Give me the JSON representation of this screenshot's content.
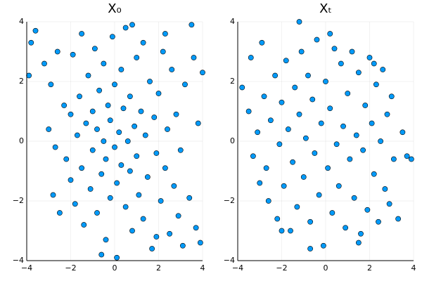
{
  "chart_data": [
    {
      "type": "scatter",
      "title": "X₀",
      "color": "#009af9",
      "grid": true,
      "xlim": [
        -4,
        4
      ],
      "ylim": [
        -4,
        4
      ],
      "xticks": [
        {
          "value": -4,
          "label": "−4"
        },
        {
          "value": -2,
          "label": "−2"
        },
        0,
        2,
        4
      ],
      "yticks": [
        {
          "value": -4,
          "label": "−4"
        },
        {
          "value": -2,
          "label": "−2"
        },
        0,
        2,
        4
      ],
      "x": [
        -3.9,
        -3.8,
        -3.6,
        -3.2,
        -2.9,
        -3.0,
        -2.7,
        -2.8,
        -2.5,
        -2.3,
        -2.2,
        -2.0,
        -2.0,
        -1.9,
        -1.8,
        -1.7,
        -1.6,
        -1.5,
        -1.4,
        -1.3,
        -1.2,
        -1.1,
        -1.0,
        -1.0,
        -0.9,
        -0.8,
        -0.8,
        -0.7,
        -0.6,
        -0.5,
        -0.5,
        -0.4,
        -0.4,
        -0.3,
        -0.2,
        -0.2,
        -0.1,
        0.0,
        0.0,
        0.1,
        0.1,
        0.2,
        0.3,
        0.3,
        0.4,
        0.5,
        0.5,
        0.6,
        0.7,
        0.7,
        0.8,
        0.9,
        1.0,
        1.0,
        1.1,
        1.2,
        1.3,
        1.3,
        1.4,
        1.5,
        1.6,
        1.7,
        1.8,
        1.9,
        2.0,
        2.1,
        2.2,
        2.3,
        2.4,
        2.5,
        2.6,
        2.7,
        2.8,
        2.9,
        3.0,
        3.1,
        3.2,
        3.4,
        3.6,
        3.7,
        3.8,
        3.9,
        4.0,
        3.5,
        2.3,
        -0.6,
        1.9,
        -1.5,
        0.8,
        -2.6
      ],
      "y": [
        2.2,
        3.3,
        3.7,
        2.6,
        1.9,
        0.4,
        -0.2,
        -1.8,
        -2.4,
        1.2,
        -0.6,
        0.9,
        -1.3,
        2.9,
        -2.1,
        0.2,
        1.5,
        -0.9,
        -2.8,
        0.6,
        2.2,
        -1.6,
        1.0,
        -0.3,
        3.1,
        -2.4,
        0.4,
        1.7,
        -1.1,
        0.0,
        2.6,
        -3.3,
        -0.6,
        1.2,
        -1.9,
        0.7,
        3.5,
        -0.2,
        1.9,
        -1.4,
        -3.9,
        0.3,
        2.4,
        -0.8,
        1.1,
        -2.2,
        3.8,
        0.0,
        -1.0,
        1.5,
        -3.0,
        0.5,
        2.8,
        -0.5,
        -1.8,
        1.0,
        3.3,
        -2.6,
        0.2,
        -1.2,
        2.0,
        -3.6,
        0.8,
        -0.4,
        1.6,
        -2.0,
        3.0,
        -0.9,
        0.4,
        -3.1,
        2.4,
        -1.5,
        0.9,
        -2.5,
        -0.3,
        -3.5,
        1.9,
        -1.9,
        2.8,
        -2.9,
        0.6,
        -3.4,
        2.3,
        3.9,
        3.6,
        -3.8,
        -3.2,
        3.6,
        3.9,
        3.0
      ]
    },
    {
      "type": "scatter",
      "title": "Xₜ",
      "color": "#009af9",
      "grid": true,
      "xlim": [
        -4,
        4
      ],
      "ylim": [
        -4,
        4
      ],
      "xticks": [
        {
          "value": -4,
          "label": "−4"
        },
        {
          "value": -2,
          "label": "−2"
        },
        0,
        2,
        4
      ],
      "yticks": [
        {
          "value": -4,
          "label": "−4"
        },
        {
          "value": -2,
          "label": "−2"
        },
        0,
        2,
        4
      ],
      "x": [
        -3.8,
        -3.4,
        -3.5,
        -3.3,
        -3.1,
        -3.0,
        -2.9,
        -2.8,
        -2.7,
        -2.6,
        -2.5,
        -2.3,
        -2.2,
        -2.1,
        -2.0,
        -1.9,
        -1.8,
        -1.7,
        -1.6,
        -1.5,
        -1.4,
        -1.3,
        -1.2,
        -1.1,
        -1.0,
        -0.9,
        -0.8,
        -0.7,
        -0.6,
        -0.5,
        -0.4,
        -0.3,
        -0.2,
        -0.1,
        0.0,
        0.1,
        0.2,
        0.3,
        0.4,
        0.5,
        0.6,
        0.7,
        0.8,
        0.9,
        1.0,
        1.1,
        1.2,
        1.3,
        1.4,
        1.5,
        1.6,
        1.7,
        1.8,
        1.9,
        2.0,
        2.1,
        2.2,
        2.3,
        2.4,
        2.5,
        2.6,
        2.7,
        2.8,
        2.9,
        3.0,
        3.1,
        3.3,
        3.5,
        3.7,
        3.9,
        -0.7,
        0.2,
        -1.2,
        1.5,
        -2.0,
        2.2
      ],
      "y": [
        1.8,
        2.8,
        1.0,
        -0.5,
        0.3,
        -1.4,
        3.3,
        1.5,
        -0.9,
        -2.0,
        0.7,
        2.2,
        -2.6,
        -0.1,
        1.3,
        -1.5,
        2.7,
        0.4,
        -3.0,
        -0.7,
        1.8,
        -2.2,
        0.9,
        3.0,
        -1.2,
        0.1,
        2.2,
        -2.7,
        1.4,
        -0.4,
        3.4,
        -1.8,
        0.6,
        -3.5,
        2.0,
        -0.9,
        1.1,
        -2.4,
        3.1,
        -0.1,
        -1.5,
        2.6,
        0.5,
        -2.9,
        1.6,
        -0.6,
        3.0,
        -1.9,
        0.2,
        2.3,
        -3.1,
        -0.3,
        1.2,
        -2.3,
        2.8,
        0.6,
        -1.1,
        1.9,
        -2.7,
        0.0,
        2.4,
        -1.6,
        0.9,
        -2.1,
        1.5,
        -0.6,
        -2.6,
        0.3,
        -0.5,
        -0.6,
        -3.6,
        3.6,
        4.0,
        -3.4,
        -3.0,
        2.6
      ]
    }
  ]
}
